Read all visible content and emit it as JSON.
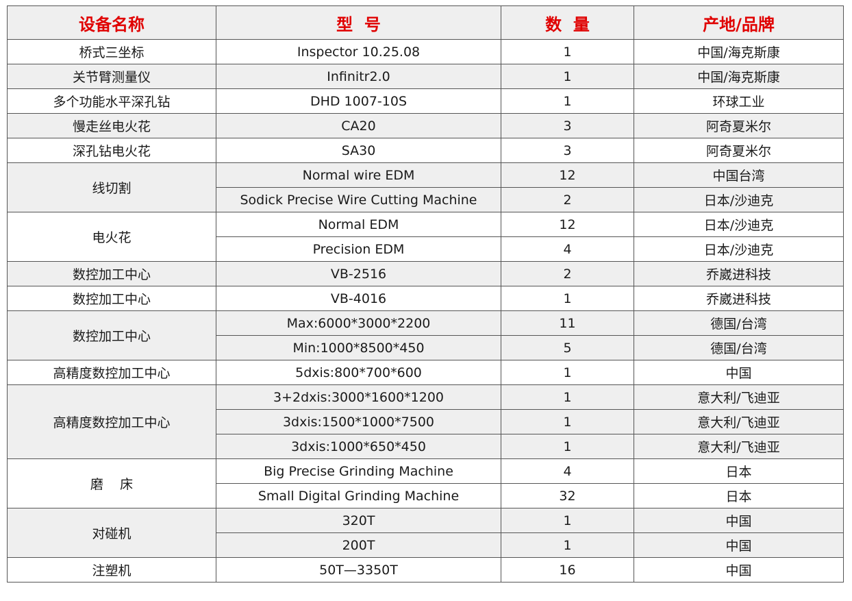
{
  "headers": [
    "设备名称",
    "型  号",
    "数  量",
    "产地/品牌"
  ],
  "groups": [
    {
      "name": "桥式三坐标",
      "items": [
        {
          "model": "Inspector 10.25.08",
          "qty": "1",
          "origin": "中国/海克斯康"
        }
      ]
    },
    {
      "name": "关节臂测量仪",
      "items": [
        {
          "model": "Infinitr2.0",
          "qty": "1",
          "origin": "中国/海克斯康"
        }
      ]
    },
    {
      "name": "多个功能水平深孔钻",
      "items": [
        {
          "model": "DHD 1007-10S",
          "qty": "1",
          "origin": "环球工业"
        }
      ]
    },
    {
      "name": "慢走丝电火花",
      "items": [
        {
          "model": "CA20",
          "qty": "3",
          "origin": "阿奇夏米尔"
        }
      ]
    },
    {
      "name": "深孔钻电火花",
      "items": [
        {
          "model": "SA30",
          "qty": "3",
          "origin": "阿奇夏米尔"
        }
      ]
    },
    {
      "name": "线切割",
      "items": [
        {
          "model": "Normal wire EDM",
          "qty": "12",
          "origin": "中国台湾"
        },
        {
          "model": "Sodick Precise Wire Cutting Machine",
          "qty": "2",
          "origin": "日本/沙迪克"
        }
      ]
    },
    {
      "name": "电火花",
      "items": [
        {
          "model": "Normal EDM",
          "qty": "12",
          "origin": "日本/沙迪克"
        },
        {
          "model": "Precision EDM",
          "qty": "4",
          "origin": "日本/沙迪克"
        }
      ]
    },
    {
      "name": "数控加工中心",
      "items": [
        {
          "model": "VB-2516",
          "qty": "2",
          "origin": "乔崴进科技"
        }
      ]
    },
    {
      "name": "数控加工中心",
      "items": [
        {
          "model": "VB-4016",
          "qty": "1",
          "origin": "乔崴进科技"
        }
      ]
    },
    {
      "name": "数控加工中心",
      "items": [
        {
          "model": "Max:6000*3000*2200",
          "qty": "11",
          "origin": "德国/台湾"
        },
        {
          "model": "Min:1000*8500*450",
          "qty": "5",
          "origin": "德国/台湾"
        }
      ]
    },
    {
      "name": "高精度数控加工中心",
      "items": [
        {
          "model": "5dxis:800*700*600",
          "qty": "1",
          "origin": "中国"
        }
      ]
    },
    {
      "name": "高精度数控加工中心",
      "items": [
        {
          "model": "3+2dxis:3000*1600*1200",
          "qty": "1",
          "origin": "意大利/飞迪亚"
        },
        {
          "model": "3dxis:1500*1000*7500",
          "qty": "1",
          "origin": "意大利/飞迪亚"
        },
        {
          "model": "3dxis:1000*650*450",
          "qty": "1",
          "origin": "意大利/飞迪亚"
        }
      ]
    },
    {
      "name": "磨    床",
      "items": [
        {
          "model": "Big Precise Grinding Machine",
          "qty": "4",
          "origin": "日本"
        },
        {
          "model": "Small Digital Grinding Machine",
          "qty": "32",
          "origin": "日本"
        }
      ]
    },
    {
      "name": "对碰机",
      "items": [
        {
          "model": "320T",
          "qty": "1",
          "origin": "中国"
        },
        {
          "model": "200T",
          "qty": "1",
          "origin": "中国"
        }
      ]
    },
    {
      "name": "注塑机",
      "items": [
        {
          "model": "50T—3350T",
          "qty": "16",
          "origin": "中国"
        }
      ]
    }
  ],
  "colors": {
    "header_text": "#e00000",
    "stripe": "#efefef",
    "border": "#555555"
  }
}
